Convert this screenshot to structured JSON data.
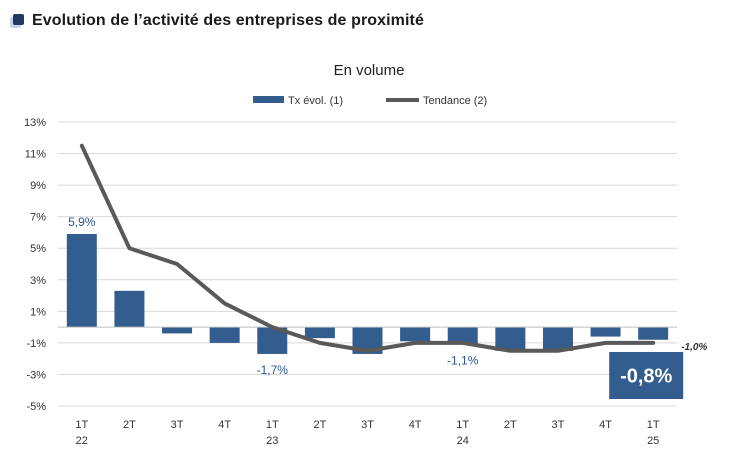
{
  "header": {
    "title": "Evolution de l’activité des entreprises de proximité",
    "icon": "square-icon"
  },
  "colors": {
    "bar": "#335c8f",
    "trend": "#595959",
    "callout_bg": "#335c8f",
    "label": "#2f5597",
    "grid": "#d9d9d9",
    "header_icon": "#1f3864"
  },
  "chart_data": {
    "type": "bar",
    "title": "En volume",
    "categories": [
      "1T",
      "2T",
      "3T",
      "4T",
      "1T",
      "2T",
      "3T",
      "4T",
      "1T",
      "2T",
      "3T",
      "4T",
      "1T"
    ],
    "year_labels": [
      "22",
      "",
      "",
      "",
      "23",
      "",
      "",
      "",
      "24",
      "",
      "",
      "",
      "25"
    ],
    "ylim": [
      -5,
      13
    ],
    "yticks": [
      13,
      11,
      9,
      7,
      5,
      3,
      1,
      -1,
      -3,
      -5
    ],
    "ytick_labels": [
      "13%",
      "11%",
      "9%",
      "7%",
      "5%",
      "3%",
      "1%",
      "-1%",
      "-3%",
      "-5%"
    ],
    "series": [
      {
        "name": "Tx évol. (1)",
        "kind": "bar",
        "values": [
          5.9,
          2.3,
          -0.4,
          -1.0,
          -1.7,
          -0.7,
          -1.7,
          -0.9,
          -1.1,
          -1.5,
          -1.5,
          -0.6,
          -0.8
        ]
      },
      {
        "name": "Tendance (2)",
        "kind": "line",
        "values": [
          11.5,
          5.0,
          4.0,
          1.5,
          0.0,
          -1.0,
          -1.5,
          -1.0,
          -1.0,
          -1.5,
          -1.5,
          -1.0,
          -1.0
        ]
      }
    ],
    "data_labels": [
      {
        "index": 0,
        "text": "5,9%"
      },
      {
        "index": 4,
        "text": "-1,7%"
      },
      {
        "index": 8,
        "text": "-1,1%"
      }
    ],
    "trend_end_label": "-1,0%",
    "callout": "-0,8%",
    "grid": true,
    "legend_position": "top"
  }
}
